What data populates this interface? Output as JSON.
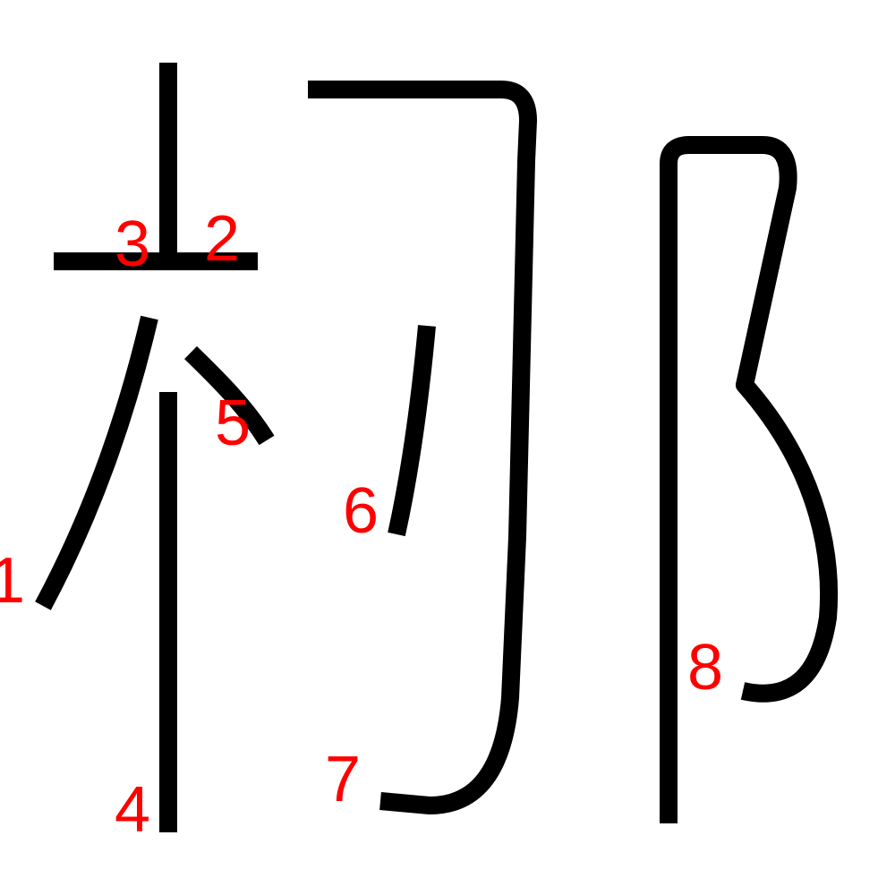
{
  "character": "柳",
  "colors": {
    "stroke": "#000000",
    "label": "#ff0000",
    "background": "#ffffff"
  },
  "stroke_labels": [
    "1",
    "2",
    "3",
    "4",
    "5",
    "6",
    "7",
    "8"
  ]
}
